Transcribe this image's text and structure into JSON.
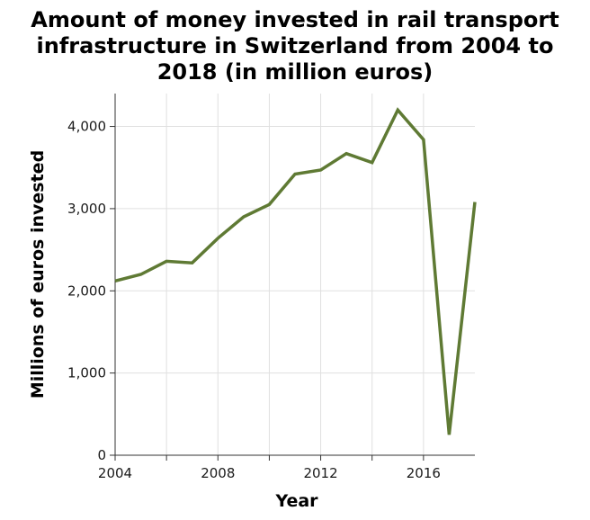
{
  "chart_data": {
    "type": "line",
    "title": [
      "Amount of money invested in rail transport",
      "infrastructure in Switzerland from 2004 to",
      "2018 (in million euros)"
    ],
    "xlabel": "Year",
    "ylabel": "Millions of euros invested",
    "xlim": [
      2004,
      2018
    ],
    "ylim": [
      0,
      4400
    ],
    "x_ticks": [
      2004,
      2008,
      2012,
      2016
    ],
    "x_tick_labels": [
      "2004",
      "2008",
      "2012",
      "2016"
    ],
    "x_minor_ticks": [
      2006,
      2010,
      2014
    ],
    "y_ticks": [
      0,
      1000,
      2000,
      3000,
      4000
    ],
    "y_tick_labels": [
      "0",
      "1,000",
      "2,000",
      "3,000",
      "4,000"
    ],
    "grid": true,
    "line_color": "#5f7a34",
    "series": [
      {
        "x": [
          2004,
          2005,
          2006,
          2007,
          2008,
          2009,
          2010,
          2011,
          2012,
          2013,
          2014,
          2015,
          2016,
          2017,
          2018
        ],
        "values": [
          2120,
          2200,
          2360,
          2340,
          2640,
          2900,
          3050,
          3420,
          3470,
          3670,
          3560,
          4200,
          3840,
          250,
          3080
        ]
      }
    ]
  }
}
